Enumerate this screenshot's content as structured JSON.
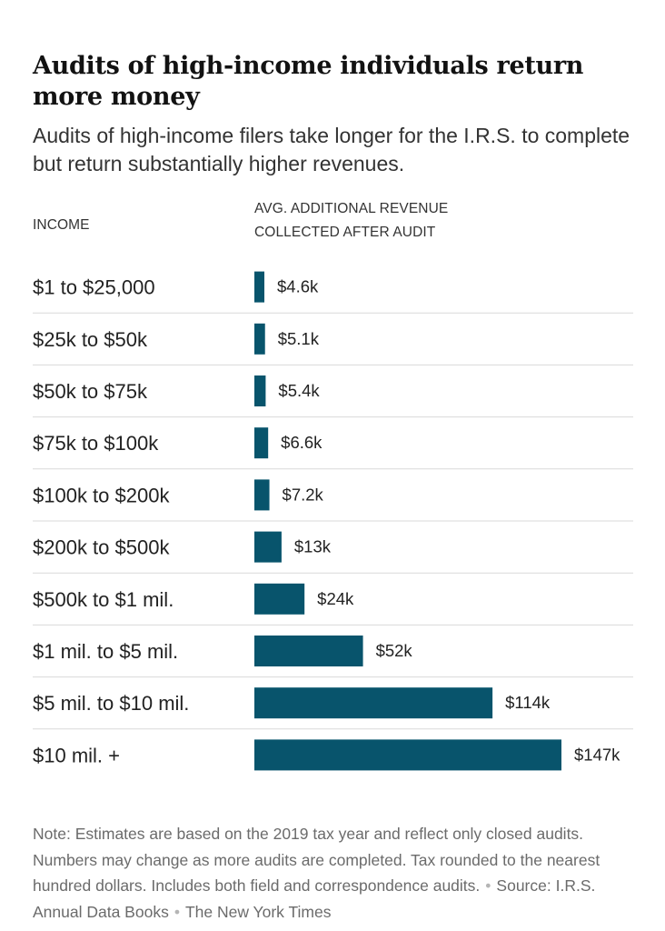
{
  "header": {
    "title": "Audits of high-income individuals return more money",
    "subtitle": "Audits of high-income filers take longer for the I.R.S. to complete but return substantially higher revenues.",
    "col_income": "INCOME",
    "col_revenue": "AVG. ADDITIONAL REVENUE COLLECTED AFTER AUDIT"
  },
  "chart_data": {
    "type": "bar",
    "orientation": "horizontal",
    "categories": [
      "$1 to $25,000",
      "$25k to $50k",
      "$50k to $75k",
      "$75k to $100k",
      "$100k to $200k",
      "$200k to $500k",
      "$500k to $1 mil.",
      "$1 mil. to $5 mil.",
      "$5 mil. to $10 mil.",
      "$10 mil. +"
    ],
    "values": [
      4.6,
      5.1,
      5.4,
      6.6,
      7.2,
      13,
      24,
      52,
      114,
      147
    ],
    "value_labels": [
      "$4.6k",
      "$5.1k",
      "$5.4k",
      "$6.6k",
      "$7.2k",
      "$13k",
      "$24k",
      "$52k",
      "$114k",
      "$147k"
    ],
    "unit": "thousands of dollars",
    "bar_color": "#08546c",
    "grid": false
  },
  "footer": {
    "note": "Note: Estimates are based on the 2019 tax year and reflect only closed audits. Numbers may change as more audits are completed. Tax rounded to the nearest hundred dollars. Includes both field and correspondence audits.",
    "source": "Source: I.R.S. Annual Data Books",
    "credit": "The New York Times"
  }
}
